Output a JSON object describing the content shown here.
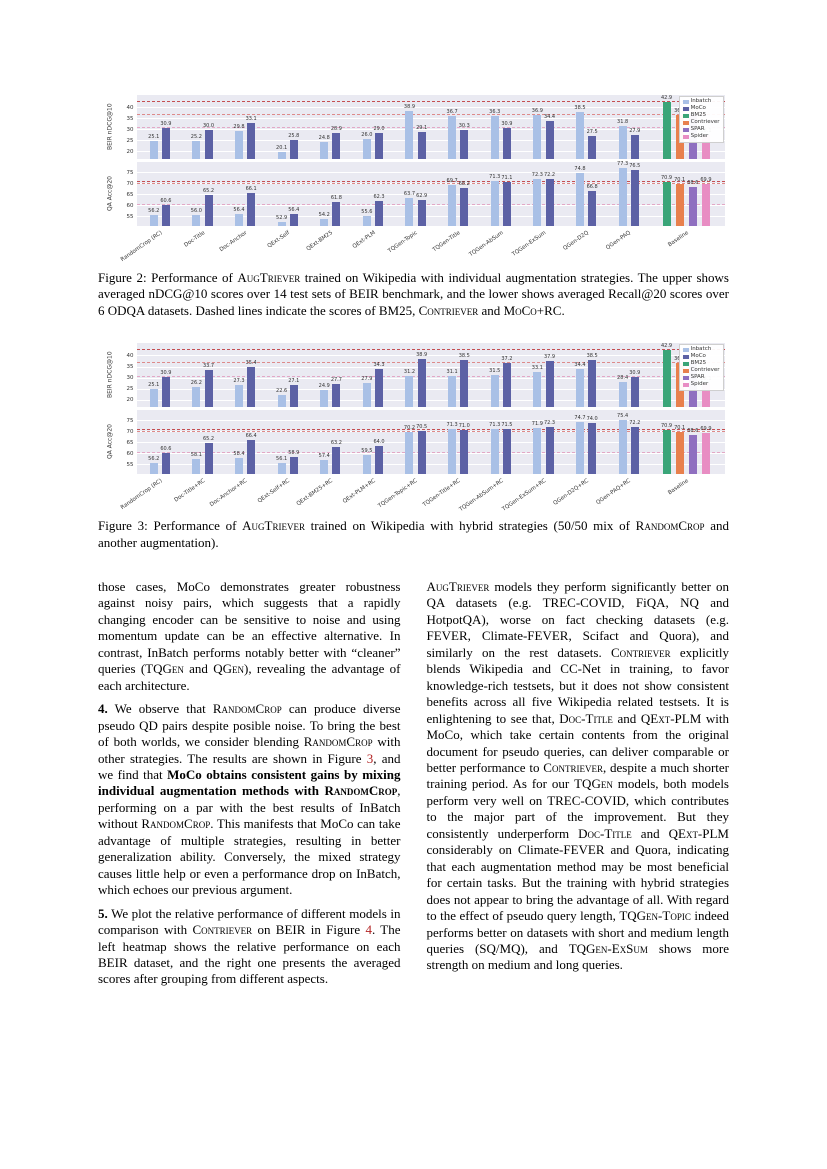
{
  "colors": {
    "inbatch": "#a9c0e6",
    "moco": "#5c61a5",
    "bm25": "#3aa578",
    "contriever": "#e8804d",
    "spar": "#8f6fc0",
    "spider": "#e88dc3",
    "plot_bg": "#eaeaf2",
    "grid": "#ffffff",
    "ref_link": "#b22222"
  },
  "figure2_caption": [
    {
      "t": "Figure 2: Performance of "
    },
    {
      "t": "AugTriever",
      "sc": true
    },
    {
      "t": " trained on Wikipedia with individual augmentation strategies. The upper shows averaged nDCG@10 scores over 14 test sets of BEIR benchmark, and the lower shows averaged Recall@20 scores over 6 ODQA datasets. Dashed lines indicate the scores of "
    },
    {
      "t": "BM25",
      "sc": true
    },
    {
      "t": ", "
    },
    {
      "t": "Contriever",
      "sc": true
    },
    {
      "t": " and "
    },
    {
      "t": "MoCo",
      "sc": true
    },
    {
      "t": "+RC."
    }
  ],
  "figure3_caption": [
    {
      "t": "Figure 3: Performance of "
    },
    {
      "t": "AugTriever",
      "sc": true
    },
    {
      "t": " trained on Wikipedia with hybrid strategies (50/50 mix of "
    },
    {
      "t": "RandomCrop",
      "sc": true
    },
    {
      "t": " and another augmentation)."
    }
  ],
  "columns": {
    "left": [
      [
        {
          "t": "those cases, MoCo demonstrates greater robustness against noisy pairs, which suggests that a rapidly changing encoder can be sensitive to noise and using momentum update can be an effective alternative. In contrast, InBatch performs notably better with “cleaner” queries ("
        },
        {
          "t": "TQGen",
          "sc": true
        },
        {
          "t": " and "
        },
        {
          "t": "QGen",
          "sc": true
        },
        {
          "t": "), revealing the advantage of each architecture."
        }
      ],
      [
        {
          "t": "4.",
          "b": true
        },
        {
          "t": " We observe that "
        },
        {
          "t": "RandomCrop",
          "sc": true
        },
        {
          "t": " can produce diverse pseudo QD pairs despite posible noise. To bring the best of both worlds, we consider blending "
        },
        {
          "t": "RandomCrop",
          "sc": true
        },
        {
          "t": " with other strategies. The results are shown in Figure "
        },
        {
          "t": "3",
          "ref": true
        },
        {
          "t": ", and we find that "
        },
        {
          "t": "MoCo obtains consistent gains by mixing individual augmentation methods with ",
          "b": true
        },
        {
          "t": "RandomCrop",
          "b": true,
          "sc": true
        },
        {
          "t": ", performing on a par with the best results of InBatch without "
        },
        {
          "t": "RandomCrop",
          "sc": true
        },
        {
          "t": ". This manifests that MoCo can take advantage of multiple strategies, resulting in better generalization ability. Conversely, the mixed strategy causes little help or even a performance drop on InBatch, which echoes our previous argument."
        }
      ],
      [
        {
          "t": "5.",
          "b": true
        },
        {
          "t": " We plot the relative performance of different models in comparison with "
        },
        {
          "t": "Contriever",
          "sc": true
        },
        {
          "t": " on BEIR in Figure "
        },
        {
          "t": "4",
          "ref": true
        },
        {
          "t": ". The left heatmap shows the relative performance on each BEIR dataset, and the right one presents the averaged scores after grouping from different aspects."
        }
      ]
    ],
    "right": [
      [
        {
          "t": "AugTriever",
          "sc": true
        },
        {
          "t": " models they perform significantly better on QA datasets (e.g. TREC-COVID, FiQA, NQ and HotpotQA), worse on fact checking datasets (e.g. FEVER, Climate-FEVER, Scifact and Quora), and similarly on the rest datasets. "
        },
        {
          "t": "Contriever",
          "sc": true
        },
        {
          "t": " explicitly blends Wikipedia and CC-Net in training, to favor knowledge-rich testsets, but it does not show consistent benefits across all five Wikipedia related testsets. It is enlightening to see that, "
        },
        {
          "t": "Doc-Title",
          "sc": true
        },
        {
          "t": " and "
        },
        {
          "t": "QExt-PLM",
          "sc": true
        },
        {
          "t": " with MoCo, which take certain contents from the original document for pseudo queries, can deliver comparable or better performance to "
        },
        {
          "t": "Contriever",
          "sc": true
        },
        {
          "t": ", despite a much shorter training period. As for our "
        },
        {
          "t": "TQGen",
          "sc": true
        },
        {
          "t": " models, both models perform very well on TREC-COVID, which contributes to the major part of the improvement. But they consistently underperform "
        },
        {
          "t": "Doc-Title",
          "sc": true
        },
        {
          "t": " and "
        },
        {
          "t": "QExt-PLM",
          "sc": true
        },
        {
          "t": " considerably on Climate-FEVER and Quora, indicating that each augmentation method may be most beneficial for certain tasks. But the training with hybrid strategies does not appear to bring the advantage of all. With regard to the effect of pseudo query length, "
        },
        {
          "t": "TQGen-Topic",
          "sc": true
        },
        {
          "t": " indeed performs better on datasets with short and medium length queries (SQ/MQ), and "
        },
        {
          "t": "TQGen-ExSum",
          "sc": true
        },
        {
          "t": " shows more strength on medium and long queries."
        }
      ]
    ]
  },
  "chart_data": [
    {
      "figure": "Figure 2",
      "type": "bar",
      "title": "AugTriever on Wikipedia, individual augmentation strategies",
      "categories": [
        "RandomCrop (RC)",
        "Doc-Title",
        "Doc-Anchor",
        "QExt-Self",
        "QExt-BM25",
        "QExt-PLM",
        "TQGen-Topic",
        "TQGen-Title",
        "TQGen-AbSum",
        "TQGen-ExSum",
        "QGen-D2Q",
        "QGen-PAQ"
      ],
      "baseline_label": "Baseline",
      "legend": [
        "Inbatch",
        "MoCo",
        "BM25",
        "Contriever",
        "SPAR",
        "Spider"
      ],
      "subplots": [
        {
          "ylabel": "BEIR nDCG@10",
          "yticks": [
            20,
            25,
            30,
            35,
            40
          ],
          "ylim": [
            17,
            46
          ],
          "series": [
            {
              "name": "Inbatch",
              "values": [
                25.1,
                25.2,
                29.8,
                20.1,
                24.8,
                26.0,
                38.9,
                36.7,
                36.3,
                36.9,
                38.5,
                31.8
              ]
            },
            {
              "name": "MoCo",
              "values": [
                30.9,
                30.0,
                33.1,
                25.8,
                28.9,
                29.0,
                29.1,
                30.3,
                30.9,
                34.4,
                27.5,
                27.9
              ]
            }
          ],
          "baseline_values": [
            {
              "name": "BM25",
              "value": 42.9
            },
            {
              "name": "Contriever",
              "value": 36.9
            },
            {
              "name": "SPAR",
              "value": 37.3
            },
            {
              "name": "Spider",
              "value": 28.1
            }
          ],
          "ref_lines": [
            {
              "name": "BM25",
              "value": 42.9,
              "color": "#c44e52"
            },
            {
              "name": "Contriever",
              "value": 36.9,
              "color": "#dd8a8a"
            },
            {
              "name": "MoCo+RC",
              "value": 30.9,
              "color": "#e3a8c6"
            }
          ]
        },
        {
          "ylabel": "QA Acc@20",
          "yticks": [
            55,
            60,
            65,
            70,
            75
          ],
          "ylim": [
            51,
            80
          ],
          "series": [
            {
              "name": "Inbatch",
              "values": [
                56.2,
                56.0,
                56.4,
                52.9,
                54.2,
                55.6,
                63.7,
                69.7,
                71.3,
                72.3,
                74.8,
                77.3
              ]
            },
            {
              "name": "MoCo",
              "values": [
                60.6,
                65.2,
                66.1,
                56.4,
                61.8,
                62.3,
                62.9,
                68.2,
                71.1,
                72.2,
                66.8,
                76.5
              ]
            }
          ],
          "baseline_values": [
            {
              "name": "BM25",
              "value": 70.9
            },
            {
              "name": "Contriever",
              "value": 70.1
            },
            {
              "name": "SPAR",
              "value": 68.6
            },
            {
              "name": "Spider",
              "value": 69.9
            }
          ],
          "ref_lines": [
            {
              "name": "BM25",
              "value": 70.9,
              "color": "#c44e52"
            },
            {
              "name": "Contriever",
              "value": 70.1,
              "color": "#dd8a8a"
            },
            {
              "name": "MoCo+RC",
              "value": 60.6,
              "color": "#e3a8c6"
            }
          ]
        }
      ]
    },
    {
      "figure": "Figure 3",
      "type": "bar",
      "title": "AugTriever on Wikipedia, hybrid strategies (50/50 mix with RandomCrop)",
      "categories": [
        "RandomCrop (RC)",
        "Doc-Title+RC",
        "Doc-Anchor+RC",
        "QExt-Self+RC",
        "QExt-BM25+RC",
        "QExt-PLM+RC",
        "TQGen-Topic+RC",
        "TQGen-Title+RC",
        "TQGen-AbSum+RC",
        "TQGen-ExSum+RC",
        "QGen-D2Q+RC",
        "QGen-PAQ+RC"
      ],
      "baseline_label": "Baseline",
      "legend": [
        "Inbatch",
        "MoCo",
        "BM25",
        "Contriever",
        "SPAR",
        "Spider"
      ],
      "subplots": [
        {
          "ylabel": "BEIR nDCG@10",
          "yticks": [
            20,
            25,
            30,
            35,
            40
          ],
          "ylim": [
            17,
            46
          ],
          "series": [
            {
              "name": "Inbatch",
              "values": [
                25.1,
                26.2,
                27.3,
                22.6,
                24.9,
                27.9,
                31.2,
                31.1,
                31.5,
                33.1,
                34.4,
                28.4
              ]
            },
            {
              "name": "MoCo",
              "values": [
                30.9,
                33.7,
                35.4,
                27.1,
                27.7,
                34.3,
                38.9,
                38.5,
                37.2,
                37.9,
                38.5,
                30.9
              ]
            }
          ],
          "baseline_values": [
            {
              "name": "BM25",
              "value": 42.9
            },
            {
              "name": "Contriever",
              "value": 36.9
            },
            {
              "name": "SPAR",
              "value": 37.3
            },
            {
              "name": "Spider",
              "value": 28.1
            }
          ],
          "ref_lines": [
            {
              "name": "BM25",
              "value": 42.9,
              "color": "#c44e52"
            },
            {
              "name": "Contriever",
              "value": 36.9,
              "color": "#dd8a8a"
            },
            {
              "name": "MoCo+RC",
              "value": 30.9,
              "color": "#e3a8c6"
            }
          ]
        },
        {
          "ylabel": "QA Acc@20",
          "yticks": [
            55,
            60,
            65,
            70,
            75
          ],
          "ylim": [
            51,
            80
          ],
          "series": [
            {
              "name": "Inbatch",
              "values": [
                56.2,
                58.1,
                58.4,
                56.1,
                57.4,
                59.5,
                70.2,
                71.3,
                71.3,
                71.9,
                74.7,
                75.4
              ]
            },
            {
              "name": "MoCo",
              "values": [
                60.6,
                65.2,
                66.4,
                58.9,
                63.2,
                64.0,
                70.5,
                71.0,
                71.5,
                72.3,
                74.0,
                72.2
              ]
            }
          ],
          "baseline_values": [
            {
              "name": "BM25",
              "value": 70.9
            },
            {
              "name": "Contriever",
              "value": 70.1
            },
            {
              "name": "SPAR",
              "value": 68.6
            },
            {
              "name": "Spider",
              "value": 69.9
            }
          ],
          "ref_lines": [
            {
              "name": "BM25",
              "value": 70.9,
              "color": "#c44e52"
            },
            {
              "name": "Contriever",
              "value": 70.1,
              "color": "#dd8a8a"
            },
            {
              "name": "MoCo+RC",
              "value": 60.6,
              "color": "#e3a8c6"
            }
          ]
        }
      ]
    }
  ]
}
